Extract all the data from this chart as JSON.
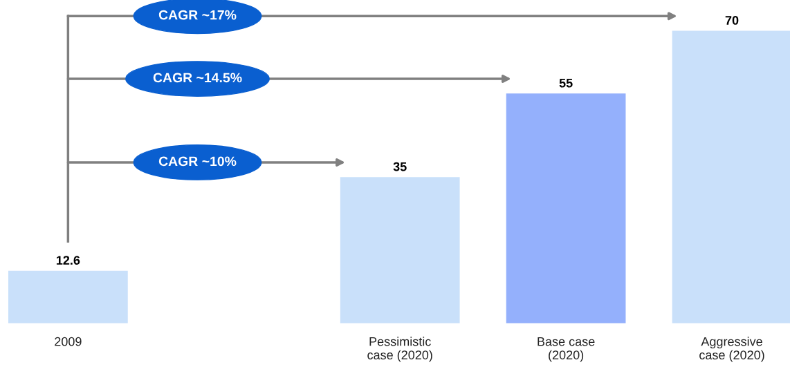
{
  "chart_data": {
    "type": "bar",
    "categories": [
      "2009",
      null,
      "Pessimistic\ncase (2020)",
      "Base case\n(2020)",
      "Aggressive\ncase (2020)"
    ],
    "values": [
      12.6,
      null,
      35,
      55,
      70
    ],
    "colors": [
      "#c9e0fa",
      "#c9e0fa",
      "#c9e0fa",
      "#94b0fc",
      "#c9e0fa"
    ],
    "data_labels": true,
    "annotations": [
      "CAGR ~10%",
      "CAGR ~14.5%",
      "CAGR ~17%"
    ]
  }
}
